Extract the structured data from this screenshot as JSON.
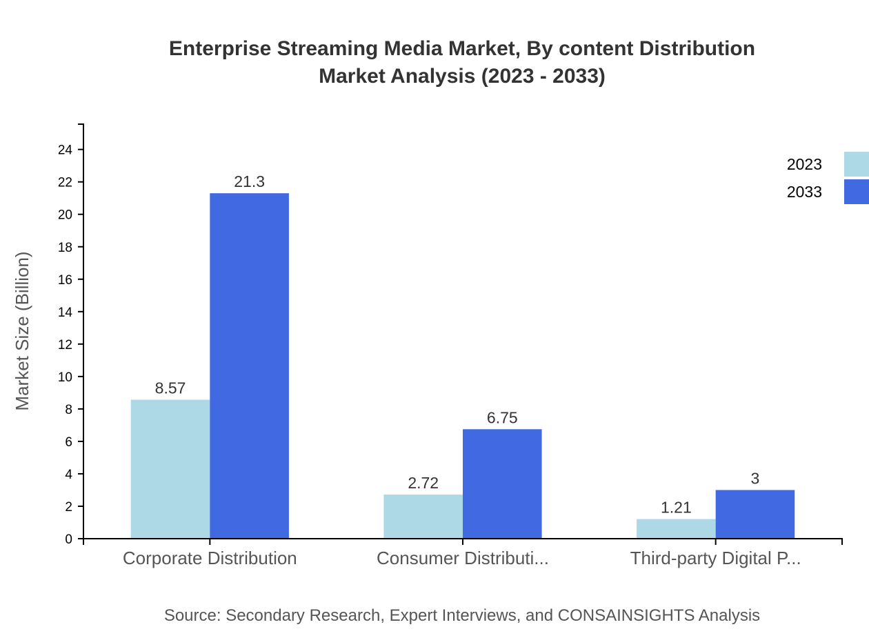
{
  "chart_data": {
    "type": "bar",
    "title_lines": [
      "Enterprise Streaming Media Market, By content Distribution",
      "Market Analysis (2023 - 2033)"
    ],
    "ylabel": "Market Size (Billion)",
    "xlabel": "",
    "categories": [
      "Corporate Distribution",
      "Consumer Distributi...",
      "Third-party Digital P..."
    ],
    "series": [
      {
        "name": "2023",
        "color": "#add8e6",
        "values": [
          8.57,
          2.72,
          1.21
        ],
        "labels": [
          "8.57",
          "2.72",
          "1.21"
        ]
      },
      {
        "name": "2033",
        "color": "#4169e1",
        "values": [
          21.3,
          6.75,
          3
        ],
        "labels": [
          "21.3",
          "6.75",
          "3"
        ]
      }
    ],
    "ylim": [
      0,
      25.56
    ],
    "yticks": [
      0,
      2,
      4,
      6,
      8,
      10,
      12,
      14,
      16,
      18,
      20,
      22,
      24
    ],
    "grid": false,
    "legend_placement": "top-right",
    "source": "Source: Secondary Research, Expert Interviews, and CONSAINSIGHTS Analysis"
  }
}
